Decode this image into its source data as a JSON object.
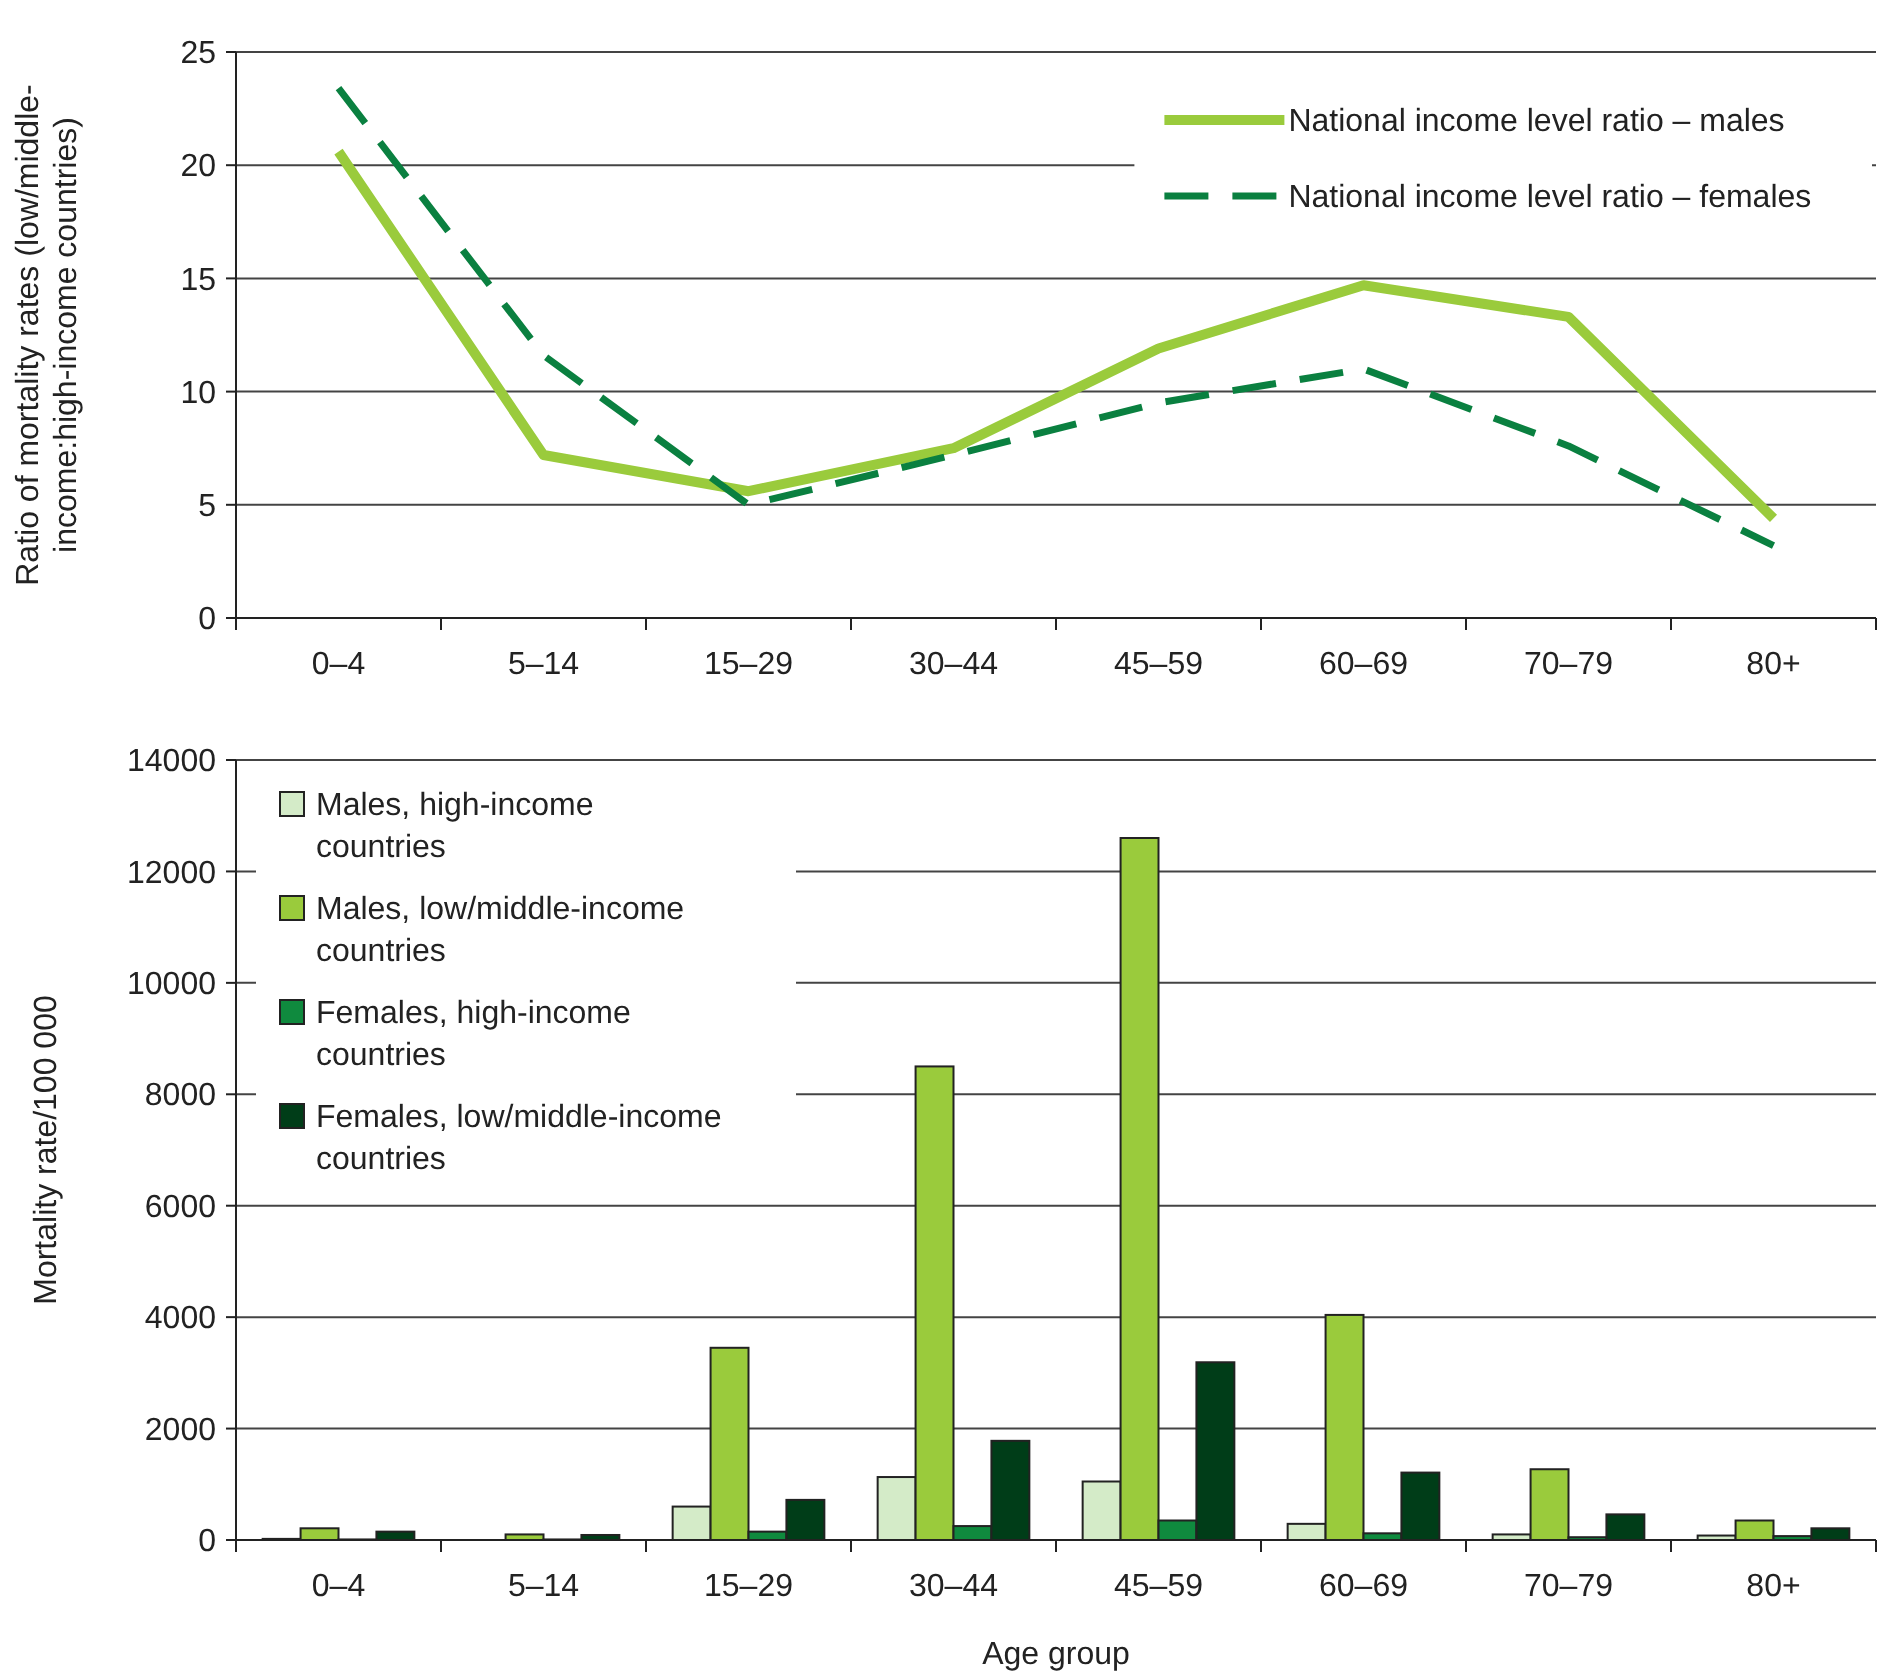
{
  "chart_data": [
    {
      "type": "line",
      "ylabel": "Ratio of mortality rates (low/middle-income:high-income countries)",
      "categories": [
        "0–4",
        "5–14",
        "15–29",
        "30–44",
        "45–59",
        "60–69",
        "70–79",
        "80+"
      ],
      "series": [
        {
          "name": "National income level ratio – males",
          "color": "#9acb3c",
          "line_style": "solid",
          "values": [
            20.6,
            7.2,
            5.6,
            7.5,
            11.9,
            14.7,
            13.3,
            4.4
          ]
        },
        {
          "name": "National income level ratio – females",
          "color": "#0a8040",
          "line_style": "dashed",
          "values": [
            23.4,
            11.6,
            5.0,
            7.2,
            9.5,
            11.0,
            7.6,
            3.2
          ]
        }
      ],
      "ylim": [
        0,
        25
      ],
      "yticks": [
        0,
        5,
        10,
        15,
        20,
        25
      ],
      "grid": "y",
      "legend": "top right",
      "marker": "none"
    },
    {
      "type": "bar",
      "xlabel": "Age group",
      "ylabel": "Mortality rate/100 000",
      "categories": [
        "0–4",
        "5–14",
        "15–29",
        "30–44",
        "45–59",
        "60–69",
        "70–79",
        "80+"
      ],
      "series": [
        {
          "name": "Males, high-income countries",
          "color": "#d4ebc8",
          "values": [
            20,
            null,
            600,
            1130,
            1050,
            290,
            100,
            80
          ]
        },
        {
          "name": "Males, low/middle-income countries",
          "color": "#9acb3c",
          "values": [
            210,
            100,
            3450,
            8500,
            12600,
            4040,
            1270,
            350
          ]
        },
        {
          "name": "Females, high-income countries",
          "color": "#0f8a3e",
          "values": [
            10,
            10,
            150,
            250,
            350,
            120,
            50,
            70
          ]
        },
        {
          "name": "Females, low/middle-income countries",
          "color": "#003d18",
          "values": [
            150,
            90,
            720,
            1780,
            3190,
            1210,
            460,
            210
          ]
        }
      ],
      "ylim": [
        0,
        14000
      ],
      "yticks": [
        0,
        2000,
        4000,
        6000,
        8000,
        10000,
        12000,
        14000
      ],
      "grid": "y",
      "legend": "top left"
    }
  ]
}
